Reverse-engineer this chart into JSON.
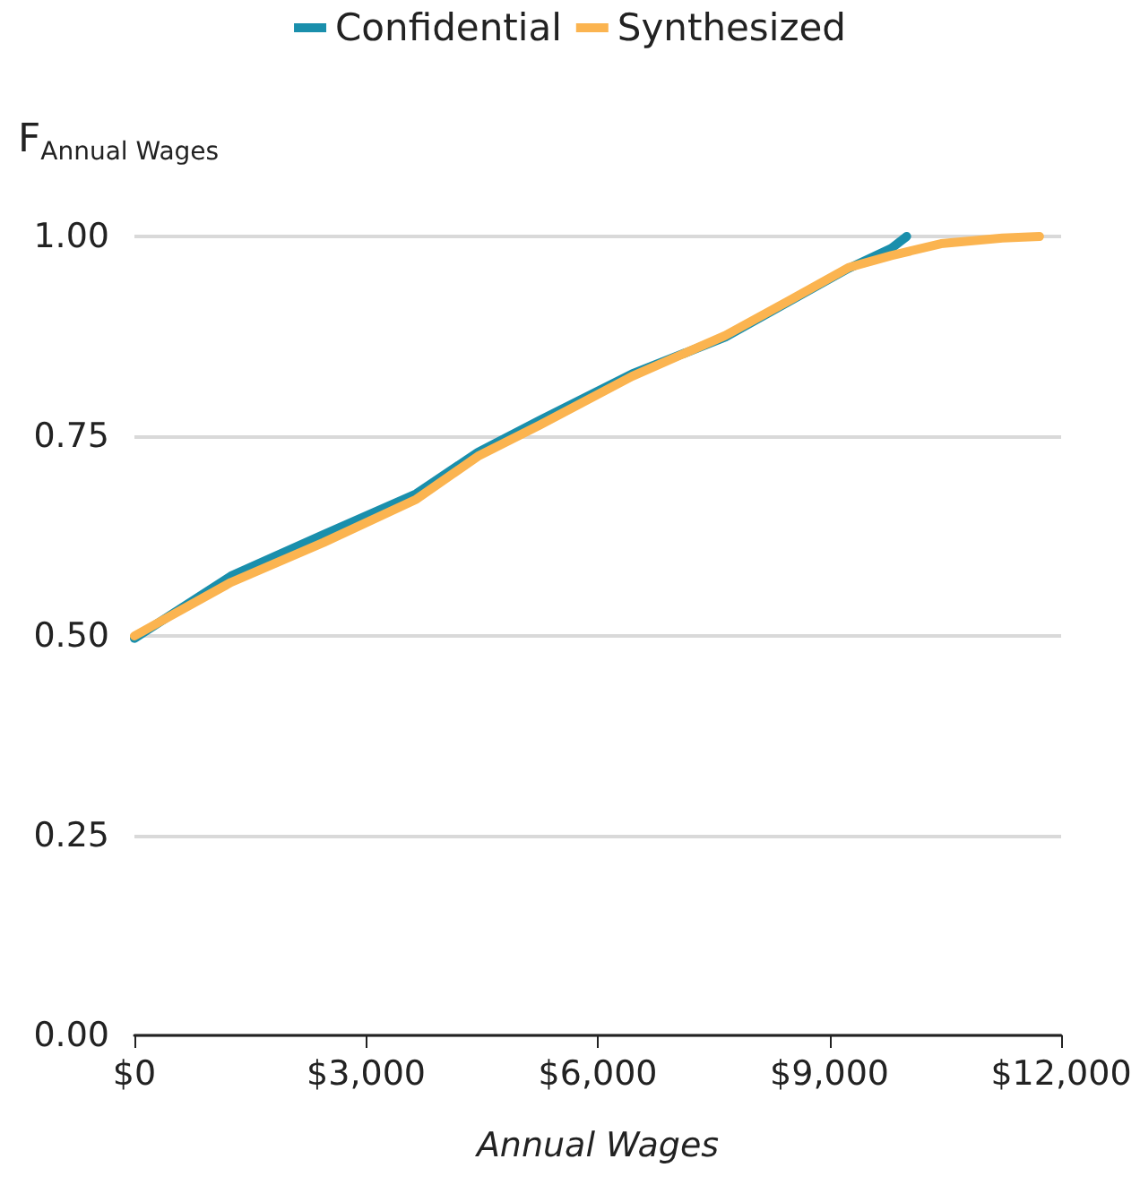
{
  "chart_data": {
    "type": "line",
    "xlabel": "Annual Wages",
    "ylabel": "F$_{Annual Wages}$",
    "xlim": [
      0,
      12000
    ],
    "xticks": [
      {
        "value": 0,
        "label": "$0"
      },
      {
        "value": 3000,
        "label": "$3,000"
      },
      {
        "value": 6000,
        "label": "$6,000"
      },
      {
        "value": 9000,
        "label": "$9,000"
      },
      {
        "value": 12000,
        "label": "$12,000"
      }
    ],
    "ylim": [
      0,
      1
    ],
    "yticks": [
      {
        "value": 0,
        "label": "0.00"
      },
      {
        "value": 0.25,
        "label": "0.25"
      },
      {
        "value": 0.5,
        "label": "0.50"
      },
      {
        "value": 0.75,
        "label": "0.75"
      },
      {
        "value": 1,
        "label": "1.00"
      }
    ],
    "grid": "y",
    "legend": "top",
    "marker": "none",
    "line_style": "solid",
    "series": [
      {
        "name": "Confidential",
        "color": "#1a8fac",
        "x": [
          0,
          1250,
          2450,
          3650,
          4450,
          5250,
          6445,
          7650,
          8445,
          9245,
          9800,
          10000
        ],
        "values": [
          0.497,
          0.575,
          0.627,
          0.678,
          0.73,
          0.77,
          0.828,
          0.874,
          0.917,
          0.96,
          0.985,
          1.0
        ]
      },
      {
        "name": "Synthesized",
        "color": "#fbb450",
        "x": [
          0,
          1250,
          2450,
          3650,
          4450,
          5250,
          6445,
          7650,
          8445,
          9245,
          9800,
          10445,
          11240,
          11720
        ],
        "values": [
          0.5,
          0.567,
          0.617,
          0.671,
          0.725,
          0.764,
          0.825,
          0.876,
          0.918,
          0.961,
          0.976,
          0.991,
          0.998,
          1.0
        ]
      }
    ]
  }
}
